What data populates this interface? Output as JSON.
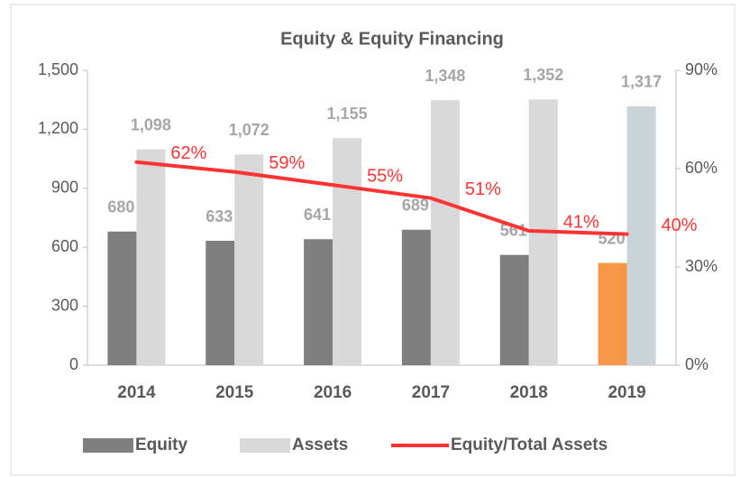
{
  "chart_data": {
    "type": "bar",
    "title": "Equity & Equity Financing",
    "categories": [
      "2014",
      "2015",
      "2016",
      "2017",
      "2018",
      "2019"
    ],
    "series": [
      {
        "name": "Equity",
        "color": "#7f7f7f",
        "colors": [
          "#7f7f7f",
          "#7f7f7f",
          "#7f7f7f",
          "#7f7f7f",
          "#7f7f7f",
          "#f79646"
        ],
        "values": [
          680,
          633,
          641,
          689,
          561,
          520
        ]
      },
      {
        "name": "Assets",
        "color": "#d9d9d9",
        "colors": [
          "#d9d9d9",
          "#d9d9d9",
          "#d9d9d9",
          "#d9d9d9",
          "#d9d9d9",
          "#c9d3d8"
        ],
        "values": [
          1098,
          1072,
          1155,
          1348,
          1352,
          1317
        ],
        "value_labels": [
          "1,098",
          "1,072",
          "1,155",
          "1,348",
          "1,352",
          "1,317"
        ]
      },
      {
        "name": "Equity/Total Assets",
        "type": "line",
        "axis": "y2",
        "color": "#ff3333",
        "values": [
          62,
          59,
          55,
          51,
          41,
          40
        ],
        "value_labels": [
          "62%",
          "59%",
          "55%",
          "51%",
          "41%",
          "40%"
        ]
      }
    ],
    "ylim": [
      0,
      1500
    ],
    "yticks": [
      0,
      300,
      600,
      900,
      {
        "value": 1200,
        "label": "1,200"
      },
      {
        "value": 1500,
        "label": "1,500"
      }
    ],
    "y2lim": [
      0,
      90
    ],
    "y2ticks": [
      {
        "value": 0,
        "label": "0%"
      },
      {
        "value": 30,
        "label": "30%"
      },
      {
        "value": 60,
        "label": "60%"
      },
      {
        "value": 90,
        "label": "90%"
      }
    ],
    "legend": "bottom"
  }
}
